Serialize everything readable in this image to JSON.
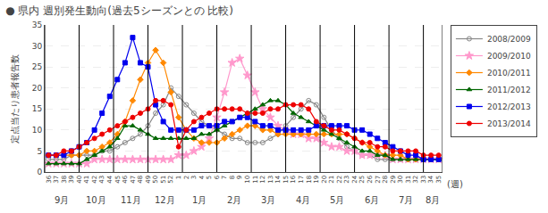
{
  "chart_data": {
    "type": "line",
    "title": "● 県内 週別発生動向(過去5シーズンとの 比較)",
    "ylabel": "定点当たり患者報告数",
    "xlabel": "(週)",
    "categories": [
      "36",
      "37",
      "38",
      "39",
      "40",
      "41",
      "42",
      "43",
      "44",
      "45",
      "46",
      "47",
      "48",
      "49",
      "50",
      "51",
      "52",
      "1",
      "2",
      "3",
      "4",
      "5",
      "6",
      "7",
      "8",
      "9",
      "10",
      "11",
      "12",
      "13",
      "14",
      "15",
      "16",
      "17",
      "18",
      "19",
      "20",
      "21",
      "22",
      "23",
      "24",
      "25",
      "26",
      "27",
      "28",
      "29",
      "30",
      "31",
      "32",
      "33",
      "34",
      "35"
    ],
    "annotations": [
      {
        "text": "9月",
        "start": 0,
        "end": 4.5
      },
      {
        "text": "10月",
        "start": 4.5,
        "end": 9
      },
      {
        "text": "11月",
        "start": 9,
        "end": 13.5
      },
      {
        "text": "12月",
        "start": 13.5,
        "end": 18
      },
      {
        "text": "1月",
        "start": 18,
        "end": 22.5
      },
      {
        "text": "2月",
        "start": 22.5,
        "end": 27
      },
      {
        "text": "3月",
        "start": 27,
        "end": 31.5
      },
      {
        "text": "4月",
        "start": 31.5,
        "end": 36
      },
      {
        "text": "5月",
        "start": 36,
        "end": 40.5
      },
      {
        "text": "6月",
        "start": 40.5,
        "end": 45
      },
      {
        "text": "7月",
        "start": 45,
        "end": 49.5
      },
      {
        "text": "8月",
        "start": 49.5,
        "end": 52
      }
    ],
    "series": [
      {
        "name": "2008/2009",
        "color": "#888888",
        "marker": "circle-open",
        "values": [
          3,
          3,
          3,
          4,
          4,
          4,
          4,
          5,
          5,
          6,
          7,
          8,
          9,
          11,
          14,
          16,
          20,
          18,
          16,
          14,
          12,
          11,
          10,
          9,
          8,
          8,
          7,
          7,
          7,
          8,
          9,
          11,
          13,
          15,
          17,
          16,
          13,
          10,
          8,
          6,
          5,
          4,
          4,
          3,
          3,
          3,
          3,
          3,
          3,
          3,
          3,
          3
        ]
      },
      {
        "name": "2009/2010",
        "color": "#FF99CC",
        "marker": "star",
        "values": [
          2,
          2,
          2,
          2,
          2,
          2,
          3,
          3,
          3,
          3,
          3,
          3,
          3,
          3,
          3,
          3,
          3,
          4,
          4,
          5,
          6,
          8,
          13,
          19,
          26,
          27,
          23,
          19,
          15,
          13,
          11,
          10,
          9,
          9,
          8,
          8,
          7,
          6,
          6,
          5,
          5,
          4,
          4,
          4,
          4,
          3,
          3,
          3,
          3,
          3,
          3,
          3
        ]
      },
      {
        "name": "2010/2011",
        "color": "#FF8800",
        "marker": "diamond",
        "values": [
          4,
          4,
          4,
          4,
          4,
          5,
          5,
          6,
          7,
          9,
          12,
          17,
          22,
          26,
          29,
          26,
          19,
          13,
          10,
          8,
          7,
          7,
          7,
          8,
          9,
          10,
          11,
          11,
          10,
          10,
          9,
          9,
          9,
          9,
          9,
          9,
          9,
          9,
          9,
          9,
          8,
          7,
          6,
          5,
          4,
          4,
          4,
          3,
          3,
          3,
          3,
          3
        ]
      },
      {
        "name": "2011/2012",
        "color": "#006600",
        "marker": "triangle-up",
        "values": [
          2,
          2,
          2,
          2,
          2,
          3,
          4,
          5,
          6,
          8,
          11,
          11,
          10,
          9,
          8,
          8,
          8,
          8,
          8,
          8,
          9,
          9,
          10,
          11,
          12,
          13,
          14,
          15,
          16,
          17,
          17,
          16,
          14,
          13,
          12,
          11,
          10,
          9,
          8,
          7,
          6,
          5,
          5,
          4,
          4,
          3,
          3,
          3,
          3,
          3,
          3,
          3
        ]
      },
      {
        "name": "2012/2013",
        "color": "#0000EE",
        "marker": "square",
        "values": [
          4,
          4,
          4,
          5,
          6,
          7,
          10,
          14,
          18,
          22,
          26,
          32,
          26,
          25,
          16,
          12,
          10,
          10,
          10,
          10,
          11,
          11,
          11,
          12,
          12,
          13,
          13,
          12,
          11,
          11,
          10,
          10,
          10,
          10,
          10,
          11,
          11,
          11,
          11,
          11,
          10,
          10,
          9,
          8,
          7,
          6,
          5,
          4,
          4,
          3,
          3,
          3
        ]
      },
      {
        "name": "2013/2014",
        "color": "#EE0000",
        "marker": "circle",
        "values": [
          4,
          4,
          5,
          5,
          6,
          7,
          8,
          9,
          10,
          11,
          12,
          13,
          14,
          15,
          17,
          17,
          16,
          6,
          10,
          12,
          13,
          14,
          15,
          15,
          15,
          15,
          14,
          14,
          14,
          15,
          15,
          16,
          16,
          16,
          15,
          12,
          11,
          10,
          10,
          9,
          8,
          7,
          7,
          6,
          6,
          5,
          5,
          5,
          5,
          4,
          4,
          4
        ]
      }
    ],
    "ylim": [
      0,
      35
    ],
    "yticks": [
      0,
      5,
      10,
      15,
      20,
      25,
      30,
      35
    ],
    "grid": true,
    "legend": "right"
  }
}
